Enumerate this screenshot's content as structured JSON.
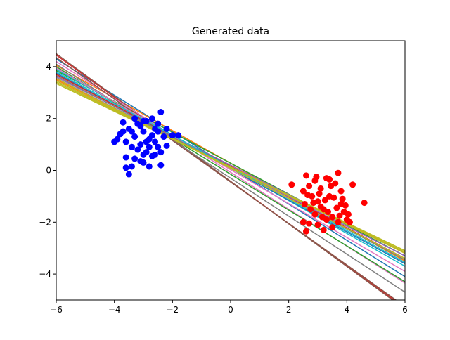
{
  "chart_data": {
    "type": "scatter",
    "title": "Generated data",
    "xlabel": "",
    "ylabel": "",
    "xlim": [
      -6,
      6
    ],
    "ylim": [
      -5,
      5
    ],
    "x_ticks": [
      -6,
      -4,
      -2,
      0,
      2,
      4,
      6
    ],
    "y_ticks": [
      -4,
      -2,
      0,
      2,
      4
    ],
    "x_tick_labels": [
      "−6",
      "−4",
      "−2",
      "0",
      "2",
      "4",
      "6"
    ],
    "y_tick_labels": [
      "−4",
      "−2",
      "0",
      "2",
      "4"
    ],
    "grid": false,
    "legend": "none",
    "series": [
      {
        "color": "#0000ff",
        "marker": "circle",
        "points": [
          [
            -3.8,
            1.4
          ],
          [
            -3.6,
            1.1
          ],
          [
            -3.5,
            1.6
          ],
          [
            -3.4,
            0.9
          ],
          [
            -3.3,
            1.3
          ],
          [
            -3.2,
            1.8
          ],
          [
            -3.1,
            1.0
          ],
          [
            -3.0,
            1.5
          ],
          [
            -2.9,
            0.7
          ],
          [
            -2.8,
            1.2
          ],
          [
            -2.7,
            2.0
          ],
          [
            -2.6,
            1.6
          ],
          [
            -2.5,
            0.9
          ],
          [
            -2.4,
            2.25
          ],
          [
            -2.3,
            1.3
          ],
          [
            -2.2,
            0.95
          ],
          [
            -2.0,
            1.35
          ],
          [
            -1.8,
            1.35
          ],
          [
            -3.6,
            0.5
          ],
          [
            -3.5,
            -0.15
          ],
          [
            -3.4,
            0.15
          ],
          [
            -3.0,
            0.3
          ],
          [
            -2.8,
            0.15
          ],
          [
            -2.6,
            0.6
          ],
          [
            -2.4,
            0.2
          ],
          [
            -4.0,
            1.1
          ],
          [
            -3.9,
            1.2
          ],
          [
            -3.7,
            1.85
          ],
          [
            -3.3,
            2.0
          ],
          [
            -3.1,
            1.7
          ],
          [
            -2.9,
            1.9
          ],
          [
            -2.7,
            0.55
          ],
          [
            -2.5,
            1.5
          ],
          [
            -3.2,
            0.8
          ],
          [
            -3.0,
            0.6
          ],
          [
            -2.8,
            0.9
          ],
          [
            -3.6,
            0.1
          ],
          [
            -2.2,
            1.6
          ],
          [
            -3.3,
            0.45
          ],
          [
            -3.1,
            0.35
          ],
          [
            -2.6,
            1.1
          ],
          [
            -2.4,
            0.7
          ],
          [
            -3.4,
            1.5
          ],
          [
            -3.7,
            1.5
          ],
          [
            -2.9,
            1.1
          ],
          [
            -3.0,
            1.9
          ],
          [
            -2.7,
            1.35
          ],
          [
            -2.5,
            1.8
          ]
        ]
      },
      {
        "color": "#ff0000",
        "marker": "circle",
        "points": [
          [
            2.1,
            -0.55
          ],
          [
            2.5,
            -0.8
          ],
          [
            2.6,
            -0.2
          ],
          [
            2.7,
            -0.6
          ],
          [
            2.8,
            -1.0
          ],
          [
            2.9,
            -0.4
          ],
          [
            3.0,
            -1.2
          ],
          [
            3.1,
            -0.7
          ],
          [
            3.2,
            -1.5
          ],
          [
            3.3,
            -0.3
          ],
          [
            3.4,
            -1.0
          ],
          [
            3.5,
            -1.8
          ],
          [
            3.6,
            -0.5
          ],
          [
            3.7,
            -0.1
          ],
          [
            3.8,
            -1.3
          ],
          [
            3.9,
            -1.6
          ],
          [
            4.0,
            -1.9
          ],
          [
            4.1,
            -2.0
          ],
          [
            4.2,
            -0.55
          ],
          [
            4.6,
            -1.25
          ],
          [
            2.6,
            -2.35
          ],
          [
            2.7,
            -2.05
          ],
          [
            2.9,
            -1.7
          ],
          [
            3.0,
            -2.1
          ],
          [
            3.1,
            -1.4
          ],
          [
            3.3,
            -1.9
          ],
          [
            3.5,
            -2.2
          ],
          [
            3.7,
            -2.0
          ],
          [
            3.8,
            -0.8
          ],
          [
            2.55,
            -1.3
          ],
          [
            2.75,
            -1.5
          ],
          [
            3.05,
            -0.9
          ],
          [
            3.25,
            -1.15
          ],
          [
            3.45,
            -0.6
          ],
          [
            3.65,
            -1.45
          ],
          [
            3.85,
            -1.1
          ],
          [
            2.95,
            -0.25
          ],
          [
            3.15,
            -1.8
          ],
          [
            3.35,
            -1.6
          ],
          [
            3.55,
            -1.05
          ],
          [
            2.65,
            -0.95
          ],
          [
            3.75,
            -1.75
          ],
          [
            3.95,
            -1.35
          ],
          [
            2.85,
            -1.25
          ],
          [
            3.4,
            -0.35
          ],
          [
            2.5,
            -2.0
          ],
          [
            3.2,
            -2.3
          ],
          [
            4.05,
            -1.7
          ]
        ]
      }
    ],
    "lines": [
      {
        "color": "#1f77b4",
        "x1": -6,
        "y1": 4.3,
        "x2": 6,
        "y2": -4.1
      },
      {
        "color": "#ff7f0e",
        "x1": -6,
        "y1": 4.05,
        "x2": 6,
        "y2": -3.5
      },
      {
        "color": "#2ca02c",
        "x1": -6,
        "y1": 3.85,
        "x2": 6,
        "y2": -3.3
      },
      {
        "color": "#d62728",
        "x1": -6,
        "y1": 4.45,
        "x2": 6,
        "y2": -5.3
      },
      {
        "color": "#9467bd",
        "x1": -6,
        "y1": 3.6,
        "x2": 6,
        "y2": -3.2
      },
      {
        "color": "#8c564b",
        "x1": -6,
        "y1": 4.5,
        "x2": 6,
        "y2": -5.35
      },
      {
        "color": "#e377c2",
        "x1": -6,
        "y1": 4.2,
        "x2": 6,
        "y2": -4.35
      },
      {
        "color": "#7f7f7f",
        "x1": -6,
        "y1": 4.1,
        "x2": 6,
        "y2": -4.7
      },
      {
        "color": "#bcbd22",
        "x1": -6,
        "y1": 3.4,
        "x2": 6,
        "y2": -3.15
      },
      {
        "color": "#17becf",
        "x1": -6,
        "y1": 3.9,
        "x2": 6,
        "y2": -3.7
      },
      {
        "color": "#1f77b4",
        "x1": -6,
        "y1": 3.75,
        "x2": 6,
        "y2": -3.6
      },
      {
        "color": "#ff7f0e",
        "x1": -6,
        "y1": 3.5,
        "x2": 6,
        "y2": -3.2
      },
      {
        "color": "#2ca02c",
        "x1": -6,
        "y1": 4.0,
        "x2": 6,
        "y2": -4.3
      },
      {
        "color": "#d62728",
        "x1": -6,
        "y1": 3.7,
        "x2": 6,
        "y2": -3.4
      },
      {
        "color": "#9467bd",
        "x1": -6,
        "y1": 3.55,
        "x2": 6,
        "y2": -3.3
      },
      {
        "color": "#8c564b",
        "x1": -6,
        "y1": 4.35,
        "x2": 6,
        "y2": -5.25
      },
      {
        "color": "#e377c2",
        "x1": -6,
        "y1": 3.95,
        "x2": 6,
        "y2": -3.9
      },
      {
        "color": "#7f7f7f",
        "x1": -6,
        "y1": 3.65,
        "x2": 6,
        "y2": -3.45
      },
      {
        "color": "#bcbd22",
        "x1": -6,
        "y1": 3.45,
        "x2": 6,
        "y2": -3.2
      },
      {
        "color": "#17becf",
        "x1": -6,
        "y1": 3.8,
        "x2": 6,
        "y2": -3.55
      },
      {
        "color": "#bcbd22",
        "x1": -6,
        "y1": 3.55,
        "x2": 6,
        "y2": -3.4
      },
      {
        "color": "#bcbd22",
        "x1": -6,
        "y1": 3.35,
        "x2": 6,
        "y2": -3.1
      }
    ]
  }
}
